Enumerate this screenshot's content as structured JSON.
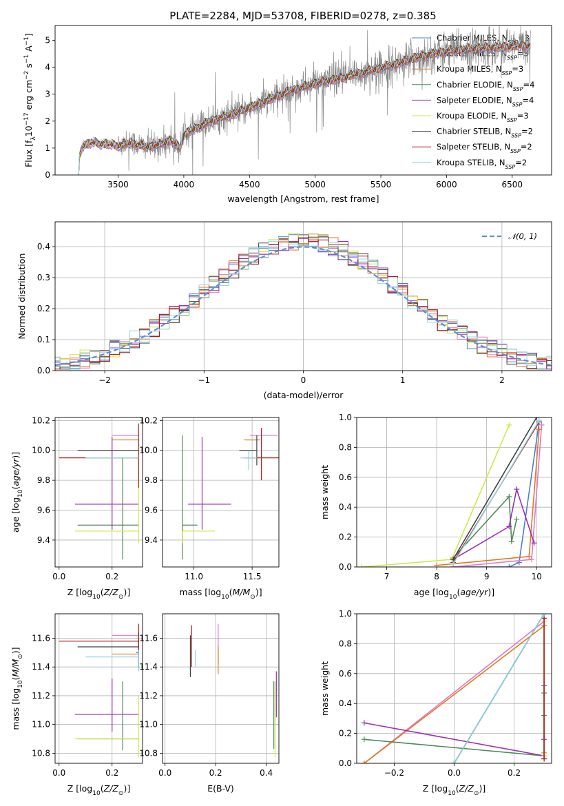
{
  "figure": {
    "title": "PLATE=2284, MJD=53708, FIBERID=0278, z=0.385"
  },
  "colors": {
    "Chabrier MILES": "#4f7bd0",
    "Salpeter MILES": "#e377c2",
    "Kroupa MILES": "#e07a1f",
    "Chabrier ELODIE": "#4f8a5b",
    "Salpeter ELODIE": "#9b30b5",
    "Kroupa ELODIE": "#d4e64a",
    "Chabrier STELIB": "#404040",
    "Salpeter STELIB": "#aa1c1c",
    "Kroupa STELIB": "#8fd4e0",
    "data": "#888888",
    "normal": "#5b8ed6"
  },
  "chart_data": [
    {
      "id": "spectrum",
      "type": "line",
      "title": "PLATE=2284, MJD=53708, FIBERID=0278, z=0.385",
      "xlabel": "wavelength [Angstrom, rest frame]",
      "ylabel_parts": [
        "Flux [f",
        "λ",
        "10",
        "−17",
        " erg cm",
        "−2",
        " s",
        "−1",
        " A",
        "−1",
        "]"
      ],
      "xlim": [
        3020,
        6800
      ],
      "ylim": [
        0,
        5.55
      ],
      "xticks": [
        3500,
        4000,
        4500,
        5000,
        5500,
        6000,
        6500
      ],
      "yticks": [
        0,
        1,
        2,
        3,
        4,
        5
      ],
      "grid": false,
      "legend_position": "top-right",
      "continuum_knots": [
        [
          3200,
          0
        ],
        [
          3205,
          0.7
        ],
        [
          3230,
          1.1
        ],
        [
          3300,
          1.2
        ],
        [
          3400,
          1.15
        ],
        [
          3500,
          1.1
        ],
        [
          3600,
          1.2
        ],
        [
          3700,
          1.05
        ],
        [
          3800,
          1.1
        ],
        [
          3900,
          1.3
        ],
        [
          3970,
          1.0
        ],
        [
          4000,
          1.5
        ],
        [
          4200,
          2.0
        ],
        [
          4400,
          2.3
        ],
        [
          4600,
          2.7
        ],
        [
          4800,
          3.1
        ],
        [
          5000,
          3.4
        ],
        [
          5200,
          3.6
        ],
        [
          5400,
          3.85
        ],
        [
          5600,
          4.1
        ],
        [
          5800,
          4.4
        ],
        [
          6000,
          4.6
        ],
        [
          6200,
          4.7
        ],
        [
          6400,
          4.75
        ],
        [
          6600,
          4.8
        ]
      ],
      "data_start": 3500,
      "legend": [
        {
          "imf": "Chabrier",
          "lib": "MILES",
          "n": "3"
        },
        {
          "imf": "Salpeter",
          "lib": "MILES",
          "n": "3"
        },
        {
          "imf": "Kroupa",
          "lib": "MILES",
          "n": "3"
        },
        {
          "imf": "Chabrier",
          "lib": "ELODIE",
          "n": "4"
        },
        {
          "imf": "Salpeter",
          "lib": "ELODIE",
          "n": "4"
        },
        {
          "imf": "Kroupa",
          "lib": "ELODIE",
          "n": "3"
        },
        {
          "imf": "Chabrier",
          "lib": "STELIB",
          "n": "2"
        },
        {
          "imf": "Salpeter",
          "lib": "STELIB",
          "n": "2"
        },
        {
          "imf": "Kroupa",
          "lib": "STELIB",
          "n": "2"
        }
      ],
      "legend_sub": "SSP",
      "legend_prefix": "N"
    },
    {
      "id": "residuals",
      "type": "histogram",
      "xlabel": "(data-model)/error",
      "ylabel": "Normed distribution",
      "xlim": [
        -2.5,
        2.5
      ],
      "ylim": [
        0,
        0.48
      ],
      "xticks": [
        -2,
        -1,
        0,
        1,
        2
      ],
      "yticks": [
        0,
        0.1,
        0.2,
        0.3,
        0.4
      ],
      "grid": true,
      "bin_width": 0.1,
      "legend": [
        "𝒩(0, 1)"
      ],
      "legend_position": "top-right",
      "normal": {
        "mu": 0,
        "sigma": 1
      }
    },
    {
      "id": "age-vs-Z",
      "type": "errorbar",
      "xlabel": "Z [log10(Z/Z⊙)]",
      "ylabel": "age  [log10(age/yr)]",
      "xlim": [
        -0.015,
        0.315
      ],
      "ylim": [
        9.22,
        10.22
      ],
      "xticks": [
        0.0,
        0.2
      ],
      "yticks": [
        9.4,
        9.6,
        9.8,
        10.0,
        10.2
      ],
      "grid": true,
      "points": [
        {
          "model": "Chabrier MILES",
          "x": 0.29,
          "xerr": [
            0.0,
            0.01
          ],
          "y": 9.95,
          "yerr": [
            0.0,
            0.0
          ]
        },
        {
          "model": "Salpeter MILES",
          "x": 0.25,
          "xerr": [
            0.05,
            0.05
          ],
          "y": 10.1,
          "yerr": [
            0.0,
            0.0
          ]
        },
        {
          "model": "Kroupa MILES",
          "x": 0.25,
          "xerr": [
            0.05,
            0.05
          ],
          "y": 10.07,
          "yerr": [
            0.0,
            0.0
          ]
        },
        {
          "model": "Chabrier ELODIE",
          "x": 0.24,
          "xerr": [
            0.17,
            0.06
          ],
          "y": 9.5,
          "yerr": [
            0.23,
            0.45
          ]
        },
        {
          "model": "Salpeter ELODIE",
          "x": 0.2,
          "xerr": [
            0.14,
            0.1
          ],
          "y": 9.64,
          "yerr": [
            0.17,
            0.45
          ]
        },
        {
          "model": "Kroupa ELODIE",
          "x": 0.3,
          "xerr": [
            0.24,
            0.0
          ],
          "y": 9.46,
          "yerr": [
            0.08,
            0.48
          ]
        },
        {
          "model": "Chabrier STELIB",
          "x": 0.3,
          "xerr": [
            0.23,
            0.0
          ],
          "y": 10.0,
          "yerr": [
            0.0,
            0.0
          ]
        },
        {
          "model": "Salpeter STELIB",
          "x": 0.3,
          "xerr": [
            0.3,
            0.0
          ],
          "y": 9.95,
          "yerr": [
            0.2,
            0.23
          ]
        },
        {
          "model": "Kroupa STELIB",
          "x": 0.3,
          "xerr": [
            0.2,
            0.0
          ],
          "y": 9.95,
          "yerr": [
            0.0,
            0.0
          ]
        }
      ]
    },
    {
      "id": "age-vs-mass",
      "type": "errorbar",
      "xlabel": "mass [log10(M/M⊙)]",
      "ylabel": "",
      "xlim": [
        10.73,
        11.73
      ],
      "ylim": [
        9.22,
        10.22
      ],
      "xticks": [
        11.0,
        11.5
      ],
      "yticks": [
        9.4,
        9.6,
        9.8,
        10.0,
        10.2
      ],
      "grid": true,
      "points": [
        {
          "model": "Chabrier MILES",
          "x": 11.5,
          "xerr": [
            0.05,
            0.05
          ],
          "y": 10.07,
          "yerr": [
            0.0,
            0.0
          ]
        },
        {
          "model": "Salpeter MILES",
          "x": 11.6,
          "xerr": [
            0.12,
            0.12
          ],
          "y": 10.1,
          "yerr": [
            0.0,
            0.0
          ]
        },
        {
          "model": "Kroupa MILES",
          "x": 11.5,
          "xerr": [
            0.07,
            0.07
          ],
          "y": 10.07,
          "yerr": [
            0.0,
            0.0
          ]
        },
        {
          "model": "Chabrier ELODIE",
          "x": 10.9,
          "xerr": [
            0.0,
            0.13
          ],
          "y": 9.5,
          "yerr": [
            0.23,
            0.6
          ]
        },
        {
          "model": "Salpeter ELODIE",
          "x": 11.07,
          "xerr": [
            0.12,
            0.25
          ],
          "y": 9.64,
          "yerr": [
            0.17,
            0.45
          ]
        },
        {
          "model": "Kroupa ELODIE",
          "x": 10.9,
          "xerr": [
            0.0,
            0.28
          ],
          "y": 9.46,
          "yerr": [
            0.08,
            0.0
          ]
        },
        {
          "model": "Chabrier STELIB",
          "x": 11.54,
          "xerr": [
            0.15,
            0.0
          ],
          "y": 10.0,
          "yerr": [
            0.1,
            0.1
          ]
        },
        {
          "model": "Salpeter STELIB",
          "x": 11.58,
          "xerr": [
            0.15,
            0.15
          ],
          "y": 9.95,
          "yerr": [
            0.15,
            0.2
          ]
        },
        {
          "model": "Kroupa STELIB",
          "x": 11.47,
          "xerr": [
            0.07,
            0.07
          ],
          "y": 9.95,
          "yerr": [
            0.08,
            0.05
          ]
        }
      ]
    },
    {
      "id": "mass-weight-vs-age",
      "type": "line",
      "xlabel": "age  [log10(age/yr)]",
      "ylabel": "mass weight",
      "xlim": [
        6.4,
        10.3
      ],
      "ylim": [
        0,
        1.0
      ],
      "xticks": [
        7,
        8,
        9,
        10
      ],
      "yticks": [
        0.0,
        0.2,
        0.4,
        0.6,
        0.8,
        1.0
      ],
      "grid": true,
      "series": [
        {
          "model": "Chabrier MILES",
          "x": [
            8.33,
            9.45,
            9.65,
            10.05
          ],
          "y": [
            0.0,
            0.0,
            0.03,
            0.97
          ]
        },
        {
          "model": "Salpeter MILES",
          "x": [
            8.33,
            9.9,
            10.1
          ],
          "y": [
            0.0,
            0.05,
            0.95
          ]
        },
        {
          "model": "Kroupa MILES",
          "x": [
            8.0,
            9.85,
            10.05
          ],
          "y": [
            0.01,
            0.07,
            0.92
          ]
        },
        {
          "model": "Chabrier ELODIE",
          "x": [
            8.33,
            9.45,
            9.5,
            9.6
          ],
          "y": [
            0.06,
            0.47,
            0.17,
            0.32
          ]
        },
        {
          "model": "Salpeter ELODIE",
          "x": [
            8.33,
            9.45,
            9.6,
            9.95
          ],
          "y": [
            0.05,
            0.27,
            0.52,
            0.16
          ]
        },
        {
          "model": "Kroupa ELODIE",
          "x": [
            6.5,
            8.3,
            9.45
          ],
          "y": [
            0.0,
            0.05,
            0.95
          ]
        },
        {
          "model": "Chabrier STELIB",
          "x": [
            8.33,
            10.0
          ],
          "y": [
            0.05,
            1.0
          ]
        },
        {
          "model": "Salpeter STELIB",
          "x": [
            8.33,
            10.05
          ],
          "y": [
            0.03,
            0.97
          ]
        },
        {
          "model": "Kroupa STELIB",
          "x": [
            8.33,
            10.05
          ],
          "y": [
            0.02,
            0.98
          ]
        }
      ]
    },
    {
      "id": "mass-vs-Z",
      "type": "errorbar",
      "xlabel": "Z [log10(Z/Z⊙)]",
      "ylabel": "mass [log10(M/M⊙)]",
      "xlim": [
        -0.015,
        0.315
      ],
      "ylim": [
        10.73,
        11.77
      ],
      "xticks": [
        0.0,
        0.2
      ],
      "yticks": [
        10.8,
        11.0,
        11.2,
        11.4,
        11.6
      ],
      "grid": true,
      "points": [
        {
          "model": "Chabrier MILES",
          "x": 0.29,
          "xerr": [
            0.0,
            0.01
          ],
          "y": 11.5,
          "yerr": [
            0.0,
            0.0
          ]
        },
        {
          "model": "Salpeter MILES",
          "x": 0.25,
          "xerr": [
            0.05,
            0.05
          ],
          "y": 11.62,
          "yerr": [
            0.0,
            0.0
          ]
        },
        {
          "model": "Kroupa MILES",
          "x": 0.25,
          "xerr": [
            0.05,
            0.05
          ],
          "y": 11.49,
          "yerr": [
            0.0,
            0.0
          ]
        },
        {
          "model": "Chabrier ELODIE",
          "x": 0.24,
          "xerr": [
            0.17,
            0.06
          ],
          "y": 10.9,
          "yerr": [
            0.08,
            0.4
          ]
        },
        {
          "model": "Salpeter ELODIE",
          "x": 0.2,
          "xerr": [
            0.14,
            0.1
          ],
          "y": 11.07,
          "yerr": [
            0.12,
            0.25
          ]
        },
        {
          "model": "Kroupa ELODIE",
          "x": 0.3,
          "xerr": [
            0.24,
            0.0
          ],
          "y": 10.9,
          "yerr": [
            0.13,
            0.3
          ]
        },
        {
          "model": "Chabrier STELIB",
          "x": 0.3,
          "xerr": [
            0.23,
            0.0
          ],
          "y": 11.54,
          "yerr": [
            0.15,
            0.1
          ]
        },
        {
          "model": "Salpeter STELIB",
          "x": 0.3,
          "xerr": [
            0.3,
            0.0
          ],
          "y": 11.58,
          "yerr": [
            0.1,
            0.12
          ]
        },
        {
          "model": "Kroupa STELIB",
          "x": 0.3,
          "xerr": [
            0.2,
            0.0
          ],
          "y": 11.47,
          "yerr": [
            0.1,
            0.05
          ]
        }
      ]
    },
    {
      "id": "mass-vs-ebv",
      "type": "errorbar",
      "xlabel": "E(B-V)",
      "ylabel": "",
      "xlim": [
        -0.01,
        0.45
      ],
      "ylim": [
        10.73,
        11.77
      ],
      "xticks": [
        0.0,
        0.2,
        0.4
      ],
      "yticks": [
        10.8,
        11.0,
        11.2,
        11.4,
        11.6
      ],
      "grid": true,
      "points": [
        {
          "model": "Chabrier MILES",
          "x": 0.21,
          "xerr": [
            0.0,
            0.0
          ],
          "y": 11.47,
          "yerr": [
            0.05,
            0.05
          ]
        },
        {
          "model": "Salpeter MILES",
          "x": 0.21,
          "xerr": [
            0.0,
            0.0
          ],
          "y": 11.58,
          "yerr": [
            0.1,
            0.12
          ]
        },
        {
          "model": "Kroupa MILES",
          "x": 0.21,
          "xerr": [
            0.0,
            0.0
          ],
          "y": 11.45,
          "yerr": [
            0.1,
            0.1
          ]
        },
        {
          "model": "Chabrier ELODIE",
          "x": 0.43,
          "xerr": [
            0.0,
            0.0
          ],
          "y": 11.05,
          "yerr": [
            0.22,
            0.25
          ]
        },
        {
          "model": "Salpeter ELODIE",
          "x": 0.44,
          "xerr": [
            0.0,
            0.0
          ],
          "y": 11.2,
          "yerr": [
            0.15,
            0.17
          ]
        },
        {
          "model": "Kroupa ELODIE",
          "x": 0.435,
          "xerr": [
            0.0,
            0.0
          ],
          "y": 11.0,
          "yerr": [
            0.23,
            0.3
          ]
        },
        {
          "model": "Chabrier STELIB",
          "x": 0.1,
          "xerr": [
            0.0,
            0.0
          ],
          "y": 11.5,
          "yerr": [
            0.17,
            0.12
          ]
        },
        {
          "model": "Salpeter STELIB",
          "x": 0.105,
          "xerr": [
            0.0,
            0.0
          ],
          "y": 11.55,
          "yerr": [
            0.15,
            0.14
          ]
        },
        {
          "model": "Kroupa STELIB",
          "x": 0.12,
          "xerr": [
            0.0,
            0.0
          ],
          "y": 11.45,
          "yerr": [
            0.05,
            0.07
          ]
        }
      ]
    },
    {
      "id": "mass-weight-vs-Z",
      "type": "line",
      "xlabel": "Z [log10(Z/Z⊙)]",
      "ylabel": "mass weight",
      "xlim": [
        -0.325,
        0.325
      ],
      "ylim": [
        0,
        1.0
      ],
      "xticks": [
        -0.2,
        0.0,
        0.2
      ],
      "yticks": [
        0.0,
        0.2,
        0.4,
        0.6,
        0.8,
        1.0
      ],
      "grid": true,
      "series": [
        {
          "model": "Chabrier MILES",
          "x": [
            0.0,
            0.3,
            0.3
          ],
          "y": [
            0.0,
            1.0,
            0.03
          ]
        },
        {
          "model": "Salpeter MILES",
          "x": [
            -0.3,
            0.3,
            0.3
          ],
          "y": [
            0.0,
            0.95,
            0.05
          ]
        },
        {
          "model": "Kroupa MILES",
          "x": [
            -0.3,
            0.3,
            0.3
          ],
          "y": [
            0.0,
            0.92,
            0.07
          ]
        },
        {
          "model": "Chabrier ELODIE",
          "x": [
            -0.3,
            0.3,
            0.3,
            0.3
          ],
          "y": [
            0.16,
            0.05,
            0.47,
            0.32
          ]
        },
        {
          "model": "Salpeter ELODIE",
          "x": [
            -0.3,
            0.3,
            0.3,
            0.3
          ],
          "y": [
            0.27,
            0.05,
            0.52,
            0.16
          ]
        },
        {
          "model": "Kroupa ELODIE",
          "x": [
            0.3,
            0.3
          ],
          "y": [
            0.05,
            0.95
          ]
        },
        {
          "model": "Chabrier STELIB",
          "x": [
            0.0,
            0.3
          ],
          "y": [
            0.0,
            1.0
          ]
        },
        {
          "model": "Salpeter STELIB",
          "x": [
            0.3,
            0.3
          ],
          "y": [
            0.03,
            0.97
          ]
        },
        {
          "model": "Kroupa STELIB",
          "x": [
            0.0,
            0.3
          ],
          "y": [
            0.0,
            1.0
          ]
        }
      ]
    }
  ]
}
